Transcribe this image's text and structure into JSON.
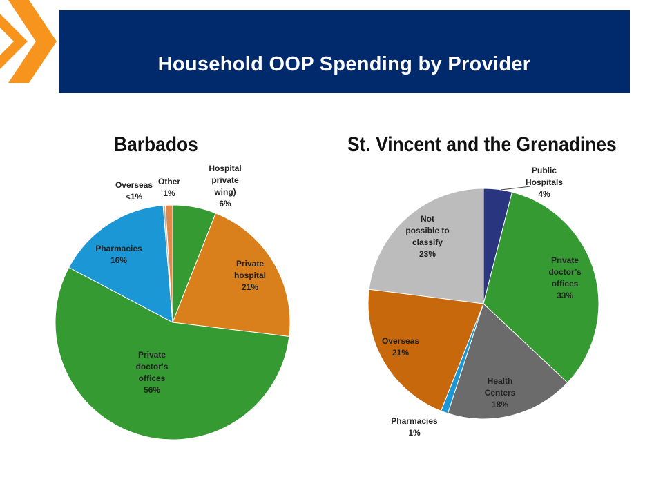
{
  "slide": {
    "title": "Household OOP Spending by Provider",
    "banner_color": "#002a6b",
    "accent_color": "#f7941d"
  },
  "chart_data": [
    {
      "type": "pie",
      "title": "Barbados",
      "slices": [
        {
          "name": "Hospital private wing)",
          "value": 6,
          "display": "6%",
          "color": "#369a33"
        },
        {
          "name": "Private hospital",
          "value": 21,
          "display": "21%",
          "color": "#d9801c"
        },
        {
          "name": "Private doctor's offices",
          "value": 56,
          "display": "56%",
          "color": "#369a33"
        },
        {
          "name": "Pharmacies",
          "value": 16,
          "display": "16%",
          "color": "#1a97d4"
        },
        {
          "name": "Overseas",
          "value": 0.3,
          "display": "<1%",
          "color": "#b7b7b7"
        },
        {
          "name": "Other",
          "value": 1,
          "display": "1%",
          "color": "#e0874a"
        }
      ]
    },
    {
      "type": "pie",
      "title": "St. Vincent and the Grenadines",
      "slices": [
        {
          "name": "Public Hospitals",
          "value": 4,
          "display": "4%",
          "color": "#29357e"
        },
        {
          "name": "Private doctor’s offices",
          "value": 33,
          "display": "33%",
          "color": "#369a33"
        },
        {
          "name": "Health Centers",
          "value": 18,
          "display": "18%",
          "color": "#6b6b6b"
        },
        {
          "name": "Pharmacies",
          "value": 1,
          "display": "1%",
          "color": "#1a97d4"
        },
        {
          "name": "Overseas",
          "value": 21,
          "display": "21%",
          "color": "#c8680c"
        },
        {
          "name": "Not possible to classify",
          "value": 23,
          "display": "23%",
          "color": "#bcbcbc"
        }
      ]
    }
  ]
}
